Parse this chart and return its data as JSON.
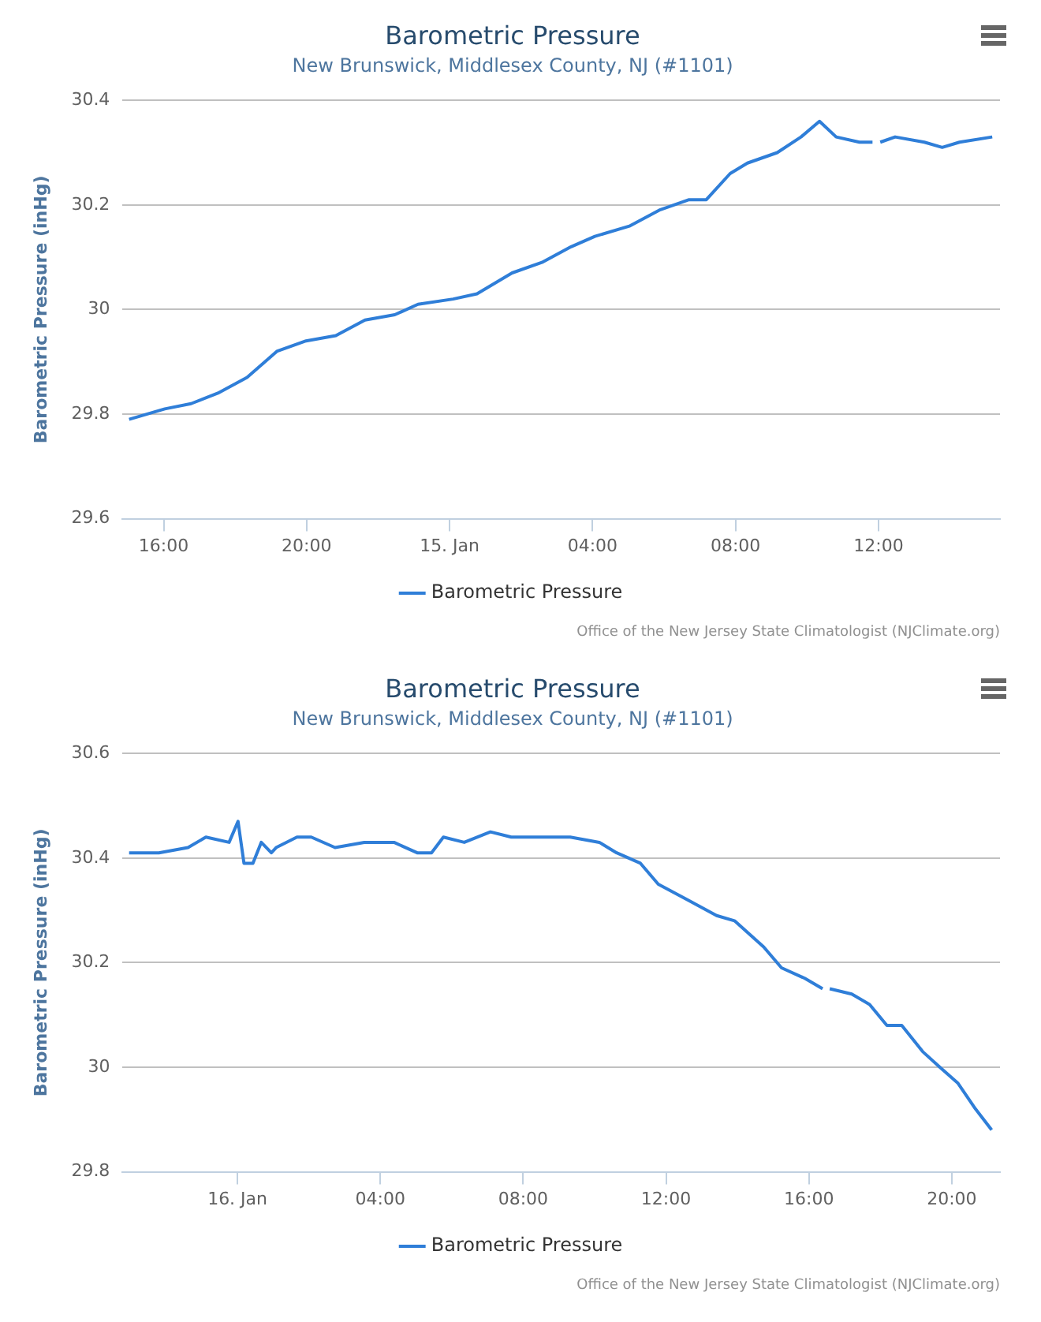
{
  "chart_data": [
    {
      "type": "line",
      "title": "Barometric Pressure",
      "subtitle": "New Brunswick, Middlesex County, NJ (#1101)",
      "ylabel": "Barometric Pressure (inHg)",
      "annotations": [
        "Office of the New Jersey State Climatologist (NJClimate.org)"
      ],
      "xlim": [
        "--01-14T14:51",
        "--01-15T15:24"
      ],
      "xticks": [
        {
          "value": "--01-14T16:00",
          "label": "16:00"
        },
        {
          "value": "--01-14T20:00",
          "label": "20:00"
        },
        {
          "value": "--01-15T00:00",
          "label": "15. Jan"
        },
        {
          "value": "--01-15T04:00",
          "label": "04:00"
        },
        {
          "value": "--01-15T08:00",
          "label": "08:00"
        },
        {
          "value": "--01-15T12:00",
          "label": "12:00"
        }
      ],
      "ylim": [
        29.6,
        30.4
      ],
      "yticks": [
        29.6,
        29.8,
        30,
        30.2,
        30.4
      ],
      "grid": "y",
      "legend": "bottom",
      "series": [
        {
          "name": "Barometric Pressure",
          "color": "#2f7ed8",
          "x": [
            "--01-14T15:02",
            "--01-14T16:02",
            "--01-14T16:46",
            "--01-14T17:31",
            "--01-14T18:20",
            "--01-14T19:10",
            "--01-14T19:59",
            "--01-14T20:49",
            "--01-14T21:38",
            "--01-14T22:28",
            "--01-14T23:07",
            "--01-15T00:06",
            "--01-15T00:46",
            "--01-15T01:45",
            "--01-15T02:35",
            "--01-15T03:24",
            "--01-15T04:04",
            "--01-15T05:03",
            "--01-15T05:52",
            "--01-15T06:42",
            "--01-15T07:11",
            "--01-15T07:51",
            "--01-15T08:20",
            "--01-15T09:10",
            "--01-15T09:50",
            "--01-15T10:21",
            "--01-15T10:49",
            "--01-15T11:28",
            "--01-15T11:50",
            "--01-15T11:56",
            "--01-15T12:03",
            "--01-15T12:28",
            "--01-15T13:17",
            "--01-15T13:47",
            "--01-15T14:16",
            "--01-15T15:11"
          ],
          "values": [
            29.79,
            29.81,
            29.82,
            29.84,
            29.87,
            29.92,
            29.94,
            29.95,
            29.98,
            29.99,
            30.01,
            30.02,
            30.03,
            30.07,
            30.09,
            30.12,
            30.14,
            30.16,
            30.19,
            30.21,
            30.21,
            30.26,
            30.28,
            30.3,
            30.33,
            30.36,
            30.33,
            30.32,
            30.32,
            null,
            30.32,
            30.33,
            30.32,
            30.31,
            30.32,
            30.33
          ]
        }
      ]
    },
    {
      "type": "line",
      "title": "Barometric Pressure",
      "subtitle": "New Brunswick, Middlesex County, NJ (#1101)",
      "ylabel": "Barometric Pressure (inHg)",
      "annotations": [
        "Office of the New Jersey State Climatologist (NJClimate.org)"
      ],
      "xlim": [
        "--01-15T20:47",
        "--01-16T21:21"
      ],
      "xticks": [
        {
          "value": "--01-16T00:00",
          "label": "16. Jan"
        },
        {
          "value": "--01-16T04:00",
          "label": "04:00"
        },
        {
          "value": "--01-16T08:00",
          "label": "08:00"
        },
        {
          "value": "--01-16T12:00",
          "label": "12:00"
        },
        {
          "value": "--01-16T16:00",
          "label": "16:00"
        },
        {
          "value": "--01-16T20:00",
          "label": "20:00"
        }
      ],
      "ylim": [
        29.8,
        30.6
      ],
      "yticks": [
        29.8,
        30,
        30.2,
        30.4,
        30.6
      ],
      "grid": "y",
      "legend": "bottom",
      "series": [
        {
          "name": "Barometric Pressure",
          "color": "#2f7ed8",
          "x": [
            "--01-15T20:58",
            "--01-15T21:48",
            "--01-15T22:37",
            "--01-15T23:07",
            "--01-15T23:46",
            "--01-16T00:01",
            "--01-16T00:11",
            "--01-16T00:26",
            "--01-16T00:40",
            "--01-16T00:57",
            "--01-16T01:05",
            "--01-16T01:40",
            "--01-16T02:04",
            "--01-16T02:44",
            "--01-16T03:33",
            "--01-16T04:23",
            "--01-16T05:02",
            "--01-16T05:26",
            "--01-16T05:46",
            "--01-16T06:21",
            "--01-16T07:05",
            "--01-16T07:40",
            "--01-16T08:29",
            "--01-16T09:19",
            "--01-16T10:08",
            "--01-16T10:37",
            "--01-16T11:17",
            "--01-16T11:47",
            "--01-16T12:36",
            "--01-16T13:25",
            "--01-16T13:55",
            "--01-16T14:44",
            "--01-16T15:14",
            "--01-16T15:53",
            "--01-16T16:23",
            "--01-16T16:29",
            "--01-16T16:35",
            "--01-16T17:12",
            "--01-16T17:42",
            "--01-16T18:11",
            "--01-16T18:36",
            "--01-16T19:11",
            "--01-16T19:40",
            "--01-16T20:10",
            "--01-16T20:40",
            "--01-16T21:07"
          ],
          "values": [
            30.41,
            30.41,
            30.42,
            30.44,
            30.43,
            30.47,
            30.39,
            30.39,
            30.43,
            30.41,
            30.42,
            30.44,
            30.44,
            30.42,
            30.43,
            30.43,
            30.41,
            30.41,
            30.44,
            30.43,
            30.45,
            30.44,
            30.44,
            30.44,
            30.43,
            30.41,
            30.39,
            30.35,
            30.32,
            30.29,
            30.28,
            30.23,
            30.19,
            30.17,
            30.15,
            null,
            30.15,
            30.14,
            30.12,
            30.08,
            30.08,
            30.03,
            30.0,
            29.97,
            29.92,
            29.88
          ]
        }
      ]
    }
  ]
}
